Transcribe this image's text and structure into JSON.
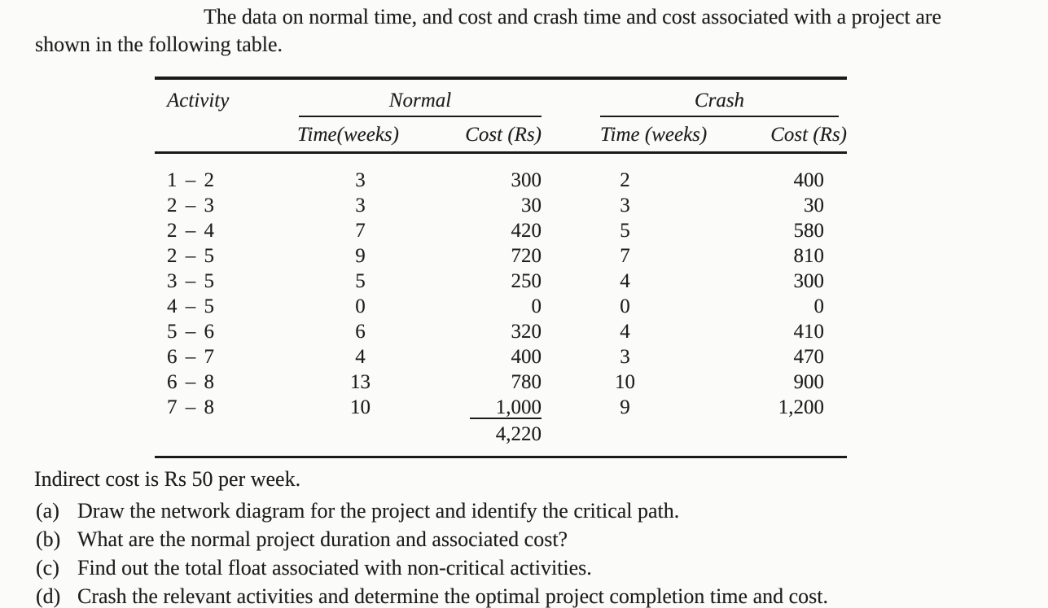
{
  "page": {
    "background": "#fbfbfa",
    "text_color": "#1d1d1d",
    "rule_color": "#1a1a1a"
  },
  "intro": {
    "line1": "The data on normal time, and cost and crash time and cost associated with a project are",
    "line2": "shown in the following table."
  },
  "table": {
    "col_activity": "Activity",
    "group_normal": "Normal",
    "group_crash": "Crash",
    "col_normal_time": "Time(weeks)",
    "col_normal_cost": "Cost (Rs)",
    "col_crash_time": "Time (weeks)",
    "col_crash_cost": "Cost (Rs)",
    "rows": [
      {
        "activity": "1 – 2",
        "normal_time": "3",
        "normal_cost": "300",
        "crash_time": "2",
        "crash_cost": "400"
      },
      {
        "activity": "2 – 3",
        "normal_time": "3",
        "normal_cost": "30",
        "crash_time": "3",
        "crash_cost": "30"
      },
      {
        "activity": "2 – 4",
        "normal_time": "7",
        "normal_cost": "420",
        "crash_time": "5",
        "crash_cost": "580"
      },
      {
        "activity": "2 – 5",
        "normal_time": "9",
        "normal_cost": "720",
        "crash_time": "7",
        "crash_cost": "810"
      },
      {
        "activity": "3 – 5",
        "normal_time": "5",
        "normal_cost": "250",
        "crash_time": "4",
        "crash_cost": "300"
      },
      {
        "activity": "4 – 5",
        "normal_time": "0",
        "normal_cost": "0",
        "crash_time": "0",
        "crash_cost": "0"
      },
      {
        "activity": "5 – 6",
        "normal_time": "6",
        "normal_cost": "320",
        "crash_time": "4",
        "crash_cost": "410"
      },
      {
        "activity": "6 – 7",
        "normal_time": "4",
        "normal_cost": "400",
        "crash_time": "3",
        "crash_cost": "470"
      },
      {
        "activity": "6 – 8",
        "normal_time": "13",
        "normal_cost": "780",
        "crash_time": "10",
        "crash_cost": "900"
      },
      {
        "activity": "7 – 8",
        "normal_time": "10",
        "normal_cost": "1,000",
        "crash_time": "9",
        "crash_cost": "1,200"
      }
    ],
    "normal_cost_total": "4,220"
  },
  "notes": {
    "indirect_cost": "Indirect cost is Rs 50 per week.",
    "questions": [
      {
        "label": "(a)",
        "text": "Draw the network diagram for the project and identify the critical path."
      },
      {
        "label": "(b)",
        "text": "What are the normal project duration and associated cost?"
      },
      {
        "label": "(c)",
        "text": "Find out the total float associated with non-critical activities."
      },
      {
        "label": "(d)",
        "text": "Crash the relevant activities and determine the optimal project completion time and cost."
      }
    ]
  }
}
